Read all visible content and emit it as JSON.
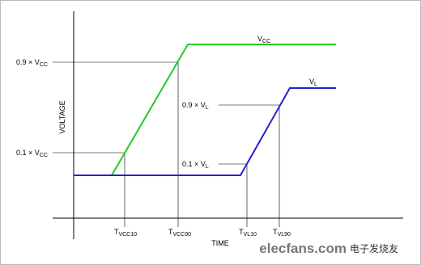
{
  "axes": {
    "y_label": "VOLTAGE",
    "x_label": "TIME"
  },
  "traces": [
    {
      "name": {
        "main": "V",
        "sub": "CC"
      },
      "color": "#22cc22"
    },
    {
      "name": {
        "main": "V",
        "sub": "L"
      },
      "color": "#2222cc"
    }
  ],
  "levels": [
    {
      "prefix": "0.9 × ",
      "main": "V",
      "sub": "CC"
    },
    {
      "prefix": "0.1 × ",
      "main": "V",
      "sub": "CC"
    },
    {
      "prefix": "0.9 × ",
      "main": "V",
      "sub": "L"
    },
    {
      "prefix": "0.1 × ",
      "main": "V",
      "sub": "L"
    }
  ],
  "times": [
    {
      "main": "T",
      "sub": "VCC10"
    },
    {
      "main": "T",
      "sub": "VCC90"
    },
    {
      "main": "T",
      "sub": "VL10"
    },
    {
      "main": "T",
      "sub": "VL90"
    }
  ],
  "watermark": {
    "site": "elecfans.com",
    "name": "电子发烧友"
  }
}
